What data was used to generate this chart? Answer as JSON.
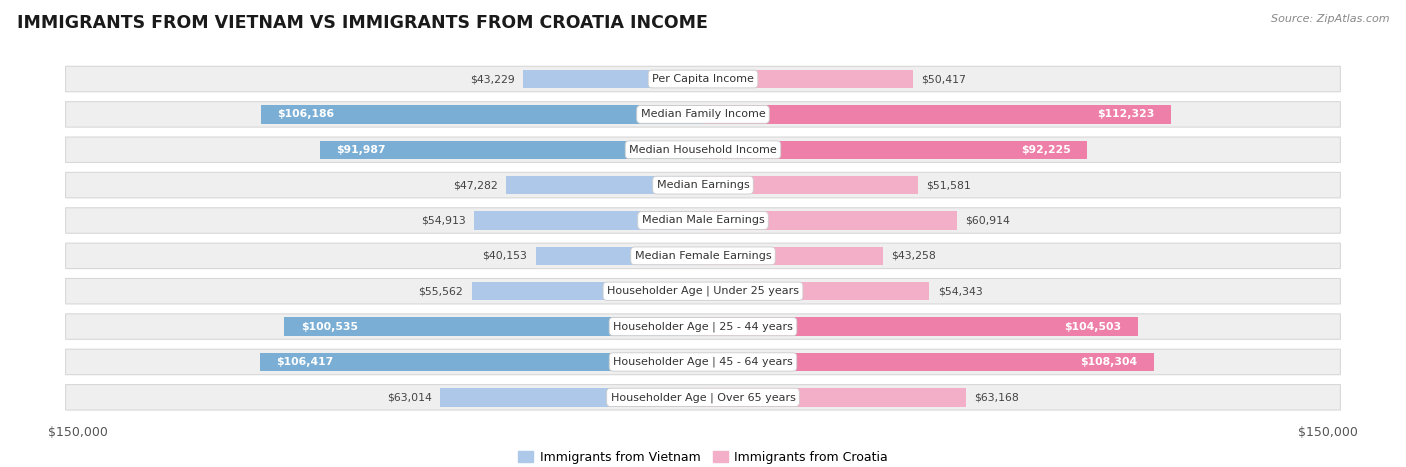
{
  "title": "IMMIGRANTS FROM VIETNAM VS IMMIGRANTS FROM CROATIA INCOME",
  "source": "Source: ZipAtlas.com",
  "categories": [
    "Per Capita Income",
    "Median Family Income",
    "Median Household Income",
    "Median Earnings",
    "Median Male Earnings",
    "Median Female Earnings",
    "Householder Age | Under 25 years",
    "Householder Age | 25 - 44 years",
    "Householder Age | 45 - 64 years",
    "Householder Age | Over 65 years"
  ],
  "vietnam_values": [
    43229,
    106186,
    91987,
    47282,
    54913,
    40153,
    55562,
    100535,
    106417,
    63014
  ],
  "croatia_values": [
    50417,
    112323,
    92225,
    51581,
    60914,
    43258,
    54343,
    104503,
    108304,
    63168
  ],
  "vietnam_color_light": "#adc8e8",
  "vietnam_color_dark": "#7aaed4",
  "croatia_color_light": "#f4afc8",
  "croatia_color_dark": "#ee7fa8",
  "vietnam_label": "Immigrants from Vietnam",
  "croatia_label": "Immigrants from Croatia",
  "max_value": 150000,
  "background_color": "#ffffff",
  "row_bg_color": "#efefef",
  "label_font_size": 8.0,
  "title_font_size": 12.5,
  "value_font_size": 7.8,
  "threshold_dark": 75000
}
